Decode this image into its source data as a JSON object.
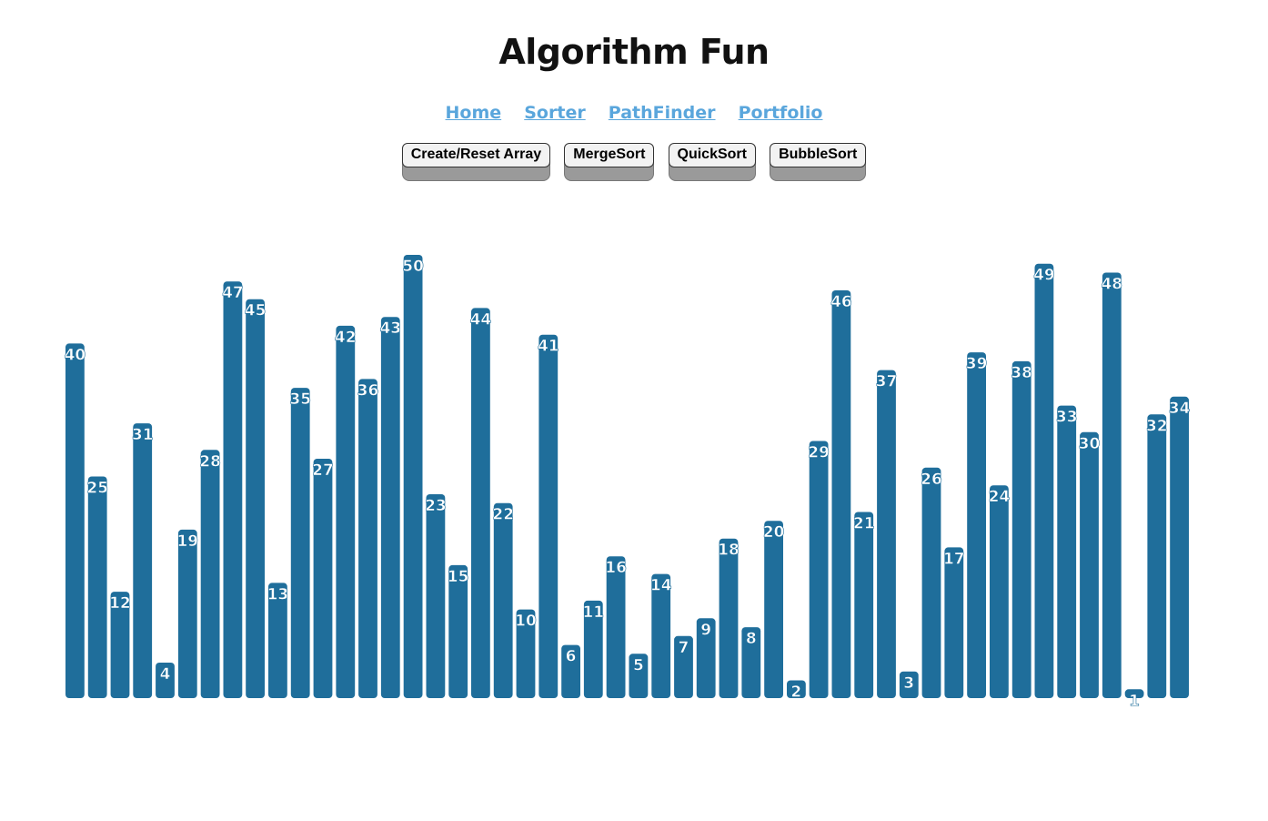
{
  "header": {
    "title": "Algorithm Fun"
  },
  "nav": {
    "links": [
      "Home",
      "Sorter",
      "PathFinder",
      "Portfolio"
    ]
  },
  "toolbar": {
    "reset_label": "Create/Reset Array",
    "merge_label": "MergeSort",
    "quick_label": "QuickSort",
    "bubble_label": "BubbleSort"
  },
  "colors": {
    "bar": "#1f6e9b",
    "link": "#5aa6dc"
  },
  "chart_data": {
    "type": "bar",
    "title": "",
    "xlabel": "",
    "ylabel": "",
    "ylim": [
      0,
      50
    ],
    "values": [
      40,
      25,
      12,
      31,
      4,
      19,
      28,
      47,
      45,
      13,
      35,
      27,
      42,
      36,
      43,
      50,
      23,
      15,
      44,
      22,
      10,
      41,
      6,
      11,
      16,
      5,
      14,
      7,
      9,
      18,
      8,
      20,
      2,
      29,
      46,
      21,
      37,
      3,
      26,
      17,
      39,
      24,
      38,
      49,
      33,
      30,
      48,
      1,
      32,
      34
    ]
  }
}
